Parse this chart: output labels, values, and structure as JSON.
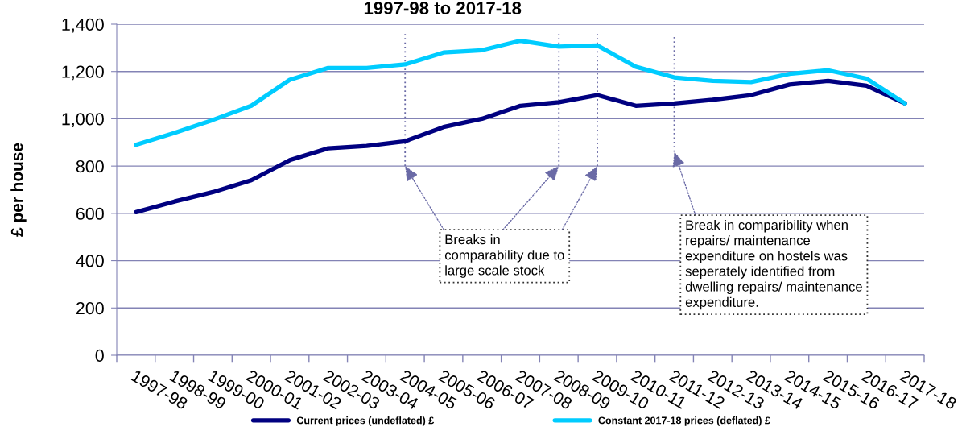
{
  "chart_data": {
    "type": "line",
    "title": "1997-98 to 2017-18",
    "ylabel": "£ per house",
    "categories": [
      "1997-98",
      "1998-99",
      "1999-00",
      "2000-01",
      "2001-02",
      "2002-03",
      "2003-04",
      "2004-05",
      "2005-06",
      "2006-07",
      "2007-08",
      "2008-09",
      "2009-10",
      "2010-11",
      "2011-12",
      "2012-13",
      "2013-14",
      "2014-15",
      "2015-16",
      "2016-17",
      "2017-18"
    ],
    "series": [
      {
        "name": "Current prices (undeflated) £",
        "color": "#000080",
        "values": [
          605,
          650,
          690,
          740,
          825,
          875,
          885,
          905,
          965,
          1000,
          1055,
          1070,
          1100,
          1055,
          1065,
          1080,
          1100,
          1145,
          1160,
          1140,
          1065
        ]
      },
      {
        "name": "Constant 2017-18 prices (deflated) £",
        "color": "#00ccff",
        "values": [
          890,
          940,
          995,
          1055,
          1165,
          1215,
          1215,
          1230,
          1280,
          1290,
          1330,
          1305,
          1310,
          1220,
          1175,
          1160,
          1155,
          1190,
          1205,
          1170,
          1065
        ]
      }
    ],
    "ylim": [
      0,
      1400
    ],
    "yticks": [
      0,
      200,
      400,
      600,
      800,
      {
        "value": 1000,
        "label": "1,000"
      },
      {
        "value": 1200,
        "label": "1,200"
      },
      {
        "value": 1400,
        "label": "1,400"
      }
    ],
    "grid": "y",
    "legend": "bottom",
    "ref_lines": [
      {
        "axis": "x",
        "value": "2004-05",
        "line_style": "dotted",
        "color": "#6a6aa6"
      },
      {
        "axis": "x",
        "value": "2008-09",
        "line_style": "dotted",
        "color": "#6a6aa6"
      },
      {
        "axis": "x",
        "value": "2009-10",
        "line_style": "dotted",
        "color": "#6a6aa6"
      },
      {
        "axis": "x",
        "value": "2011-12",
        "line_style": "dotted",
        "color": "#6a6aa6"
      }
    ],
    "annotations": [
      {
        "text": "Breaks in\ncomparability due to\nlarge scale stock",
        "x": "2008-09",
        "y": 800
      },
      {
        "text": "Break in comparibility when\nrepairs/ maintenance\nexpenditure on hostels was\nseperately identified from\ndwelling repairs/ maintenance\nexpenditure.",
        "x": "2011-12",
        "y": 860
      }
    ]
  }
}
